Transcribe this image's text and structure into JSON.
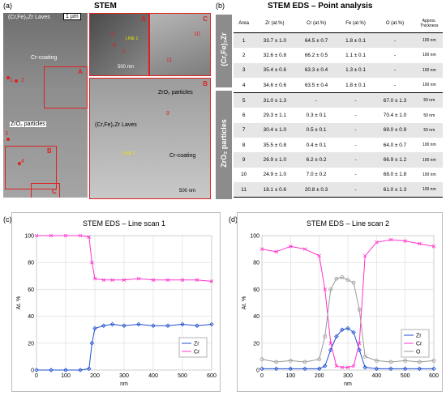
{
  "panel_a": {
    "letter": "(a)",
    "title": "STEM",
    "scale_main": "1 µm",
    "scale_inset": "500 nm",
    "labels": {
      "laves": "(Cr,Fe)₂Zr Laves",
      "coating": "Cr-coating",
      "zro2": "ZrO₂ particles",
      "laves2": "(Cr,Fe)₂Zr Laves",
      "coating2": "Cr-coating",
      "zro2b": "ZrO₂ particles",
      "line1": "LINE 1",
      "line2": "LINE 2"
    },
    "boxes": {
      "A": "A",
      "B": "B",
      "C": "C"
    },
    "points": {
      "p1": "1",
      "p2": "2",
      "p3": "3",
      "p4": "4",
      "p5": "5",
      "p6": "6",
      "p7": "7",
      "p9": "9",
      "p10": "10",
      "p11": "11"
    }
  },
  "panel_b": {
    "letter": "(b)",
    "title": "STEM EDS – Point analysis",
    "headers": [
      "Area",
      "Zr (at.%)",
      "Cr (at.%)",
      "Fe (at.%)",
      "O (at.%)",
      "Approx. Thickness"
    ],
    "group1": "(Cr,Fe)₂Zr",
    "group2": "ZrO₂ particles",
    "rows": [
      [
        "1",
        "33.7 ± 1.0",
        "64.5 ± 0.7",
        "1.8 ± 0.1",
        "-",
        "100 nm"
      ],
      [
        "2",
        "32.6 ± 0.8",
        "66.2 ± 0.5",
        "1.1 ± 0.1",
        "-",
        "100 nm"
      ],
      [
        "3",
        "35.4 ± 0.6",
        "63.3 ± 0.4",
        "1.3 ± 0.1",
        "-",
        "100 nm"
      ],
      [
        "4",
        "34.6 ± 0.6",
        "63.5 ± 0.4",
        "1.8 ± 0.1",
        "-",
        "100 nm"
      ],
      [
        "5",
        "31.0 ± 1.3",
        "-",
        "-",
        "67.0 ± 1.3",
        "50 nm"
      ],
      [
        "6",
        "29.3 ± 1.1",
        "0.3 ± 0.1",
        "-",
        "70.4 ± 1.0",
        "50 nm"
      ],
      [
        "7",
        "30.4 ± 1.0",
        "0.5 ± 0.1",
        "-",
        "69.0 ± 0.9",
        "50 nm"
      ],
      [
        "8",
        "35.5 ± 0.8",
        "0.4 ± 0.1",
        "-",
        "64.0 ± 0.7",
        "100 nm"
      ],
      [
        "9",
        "26.9 ± 1.0",
        "6.2 ± 0.2",
        "-",
        "66.9 ± 1.2",
        "100 nm"
      ],
      [
        "10",
        "24.9 ± 1.0",
        "7.0 ± 0.2",
        "-",
        "68.0 ± 1.8",
        "100 nm"
      ],
      [
        "11",
        "18.1 ± 0.6",
        "20.8 ± 0.3",
        "-",
        "61.0 ± 1.3",
        "100 nm"
      ]
    ]
  },
  "colors": {
    "zr": "#1f4fd1",
    "cr": "#ff33cc",
    "o": "#9a9a9a",
    "red": "#e02020"
  },
  "chart_data": [
    {
      "type": "line",
      "panel": "(c)",
      "title": "STEM EDS – Line scan 1",
      "xlabel": "nm",
      "ylabel": "At. %",
      "xlim": [
        0,
        600
      ],
      "ylim": [
        0,
        100
      ],
      "xticks": [
        0,
        100,
        200,
        300,
        400,
        500,
        600
      ],
      "yticks": [
        0,
        20,
        40,
        60,
        80,
        100
      ],
      "legend_position": "bottom-right",
      "series": [
        {
          "name": "Zr",
          "color": "#1f4fd1",
          "marker": "diamond",
          "x": [
            0,
            50,
            100,
            150,
            180,
            190,
            200,
            230,
            260,
            300,
            350,
            400,
            450,
            500,
            550,
            600
          ],
          "y": [
            0,
            0,
            0,
            0,
            1,
            20,
            31,
            33,
            34,
            33,
            34,
            33,
            33,
            34,
            33,
            34
          ]
        },
        {
          "name": "Cr",
          "color": "#ff33cc",
          "marker": "x",
          "x": [
            0,
            50,
            100,
            150,
            180,
            190,
            200,
            230,
            260,
            300,
            350,
            400,
            450,
            500,
            550,
            600
          ],
          "y": [
            100,
            100,
            100,
            100,
            99,
            80,
            68,
            67,
            67,
            67,
            68,
            67,
            67,
            67,
            67,
            66
          ]
        }
      ]
    },
    {
      "type": "line",
      "panel": "(d)",
      "title": "STEM EDS – Line scan 2",
      "xlabel": "nm",
      "ylabel": "At. %",
      "xlim": [
        0,
        600
      ],
      "ylim": [
        0,
        100
      ],
      "xticks": [
        0,
        100,
        200,
        300,
        400,
        500,
        600
      ],
      "yticks": [
        0,
        20,
        40,
        60,
        80,
        100
      ],
      "legend_position": "bottom-right",
      "series": [
        {
          "name": "Zr",
          "color": "#1f4fd1",
          "marker": "diamond",
          "x": [
            0,
            50,
            100,
            150,
            200,
            220,
            240,
            260,
            280,
            300,
            320,
            340,
            360,
            400,
            450,
            500,
            550,
            600
          ],
          "y": [
            1,
            1,
            1,
            1,
            1,
            3,
            15,
            25,
            30,
            31,
            28,
            15,
            2,
            1,
            1,
            1,
            1,
            1
          ]
        },
        {
          "name": "Cr",
          "color": "#ff33cc",
          "marker": "x",
          "x": [
            0,
            50,
            100,
            150,
            200,
            220,
            240,
            260,
            280,
            300,
            320,
            340,
            360,
            400,
            450,
            500,
            550,
            600
          ],
          "y": [
            90,
            88,
            92,
            90,
            85,
            60,
            20,
            3,
            2,
            2,
            3,
            20,
            85,
            95,
            97,
            96,
            94,
            92
          ]
        },
        {
          "name": "O",
          "color": "#9a9a9a",
          "marker": "circle",
          "x": [
            0,
            50,
            100,
            150,
            200,
            220,
            240,
            260,
            280,
            300,
            320,
            340,
            360,
            400,
            450,
            500,
            550,
            600
          ],
          "y": [
            8,
            6,
            7,
            6,
            8,
            25,
            60,
            68,
            69,
            67,
            65,
            45,
            10,
            7,
            6,
            7,
            6,
            7
          ]
        }
      ]
    }
  ]
}
